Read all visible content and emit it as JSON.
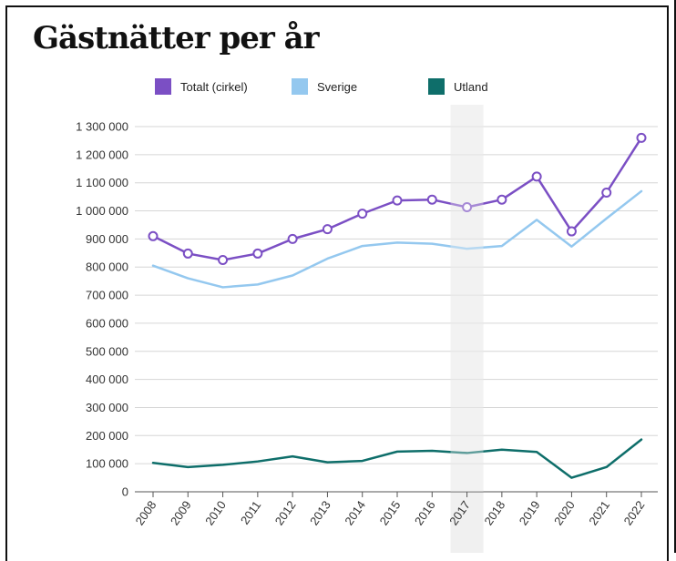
{
  "title": "Gästnätter per år",
  "chart_data": {
    "type": "line",
    "title": "Gästnätter per år",
    "xlabel": "",
    "ylabel": "",
    "ylim": [
      0,
      1300000
    ],
    "y_ticks": [
      0,
      100000,
      200000,
      300000,
      400000,
      500000,
      600000,
      700000,
      800000,
      900000,
      1000000,
      1100000,
      1200000,
      1300000
    ],
    "y_tick_labels": [
      "0",
      "100 000",
      "200 000",
      "300 000",
      "400 000",
      "500 000",
      "600 000",
      "700 000",
      "800 000",
      "900 000",
      "1 000 000",
      "1 100 000",
      "1 200 000",
      "1 300 000"
    ],
    "categories": [
      "2008",
      "2009",
      "2010",
      "2011",
      "2012",
      "2013",
      "2014",
      "2015",
      "2016",
      "2017",
      "2018",
      "2019",
      "2020",
      "2021",
      "2022"
    ],
    "highlight_category": "2017",
    "legend_position": "top",
    "grid": true,
    "series": [
      {
        "name": "Totalt (cirkel)",
        "color": "#7b4fc4",
        "markers": true,
        "values": [
          910000,
          848000,
          825000,
          848000,
          900000,
          935000,
          990000,
          1037000,
          1040000,
          1013000,
          1040000,
          1122000,
          927000,
          1065000,
          1260000
        ]
      },
      {
        "name": "Sverige",
        "color": "#94c8ef",
        "markers": false,
        "values": [
          805000,
          760000,
          728000,
          738000,
          770000,
          830000,
          875000,
          887000,
          883000,
          865000,
          875000,
          968000,
          873000,
          973000,
          1070000
        ]
      },
      {
        "name": "Utland",
        "color": "#0e6e6a",
        "markers": false,
        "values": [
          103000,
          88000,
          96000,
          108000,
          126000,
          105000,
          110000,
          143000,
          146000,
          138000,
          150000,
          142000,
          50000,
          88000,
          186000
        ]
      }
    ]
  }
}
